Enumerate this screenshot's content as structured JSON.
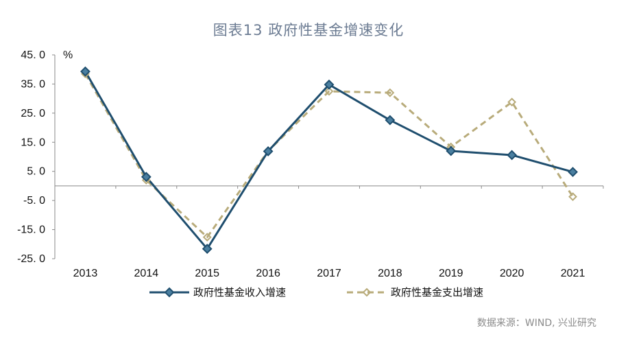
{
  "chart_data": {
    "type": "line",
    "title": "图表13 政府性基金增速变化",
    "unit": "%",
    "categories": [
      "2013",
      "2014",
      "2015",
      "2016",
      "2017",
      "2018",
      "2019",
      "2020",
      "2021"
    ],
    "ylim": [
      -25,
      45
    ],
    "yticks": [
      "45. 0",
      "35. 0",
      "25. 0",
      "15. 0",
      "5. 0",
      "-5. 0",
      "-15. 0",
      "-25. 0"
    ],
    "ytick_values": [
      45,
      35,
      25,
      15,
      5,
      -5,
      -15,
      -25
    ],
    "grid": false,
    "legend_position": "bottom",
    "series": [
      {
        "name": "政府性基金收入增速",
        "color": "#1f4e6e",
        "style": "solid",
        "marker": "diamond",
        "values": [
          39.3,
          3.1,
          -21.6,
          11.9,
          34.8,
          22.6,
          12.0,
          10.6,
          4.8
        ]
      },
      {
        "name": "政府性基金支出增速",
        "color": "#b8ab7a",
        "style": "dashed",
        "marker": "diamond",
        "values": [
          38.5,
          2.0,
          -17.6,
          12.0,
          32.5,
          32.0,
          13.4,
          28.8,
          -3.7
        ]
      }
    ]
  },
  "source": "数据来源：WIND, 兴业研究"
}
